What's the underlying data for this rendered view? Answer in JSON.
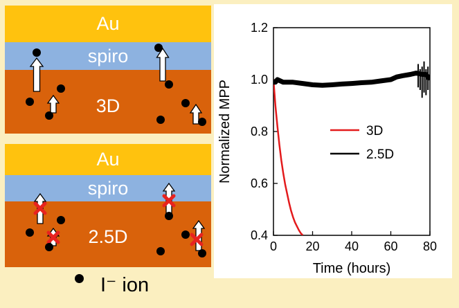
{
  "panels": [
    {
      "name": "3D",
      "layers": {
        "top": "Au",
        "middle": "spiro",
        "bottom": "3D"
      }
    },
    {
      "name": "2.5D",
      "layers": {
        "top": "Au",
        "middle": "spiro",
        "bottom": "2.5D"
      }
    }
  ],
  "legend": {
    "label": "I⁻ ion"
  },
  "colors": {
    "au": "#ffc20e",
    "spiro": "#8db2e0",
    "perovskite": "#d9620b",
    "ion": "#000000",
    "block_mark": "#e8231f"
  },
  "chart_data": {
    "type": "line",
    "xlabel": "Time (hours)",
    "ylabel": "Normalized MPP",
    "xlim": [
      0,
      80
    ],
    "ylim": [
      0.4,
      1.2
    ],
    "xticks": [
      0,
      20,
      40,
      60,
      80
    ],
    "yticks": [
      0.4,
      0.6,
      0.8,
      1.0,
      1.2
    ],
    "ytick_labels": [
      "0.4",
      "0.6",
      "0.8",
      "1.0",
      "1.2"
    ],
    "series": [
      {
        "name": "3D",
        "color": "#e31a1c",
        "x": [
          0,
          0.5,
          1,
          2,
          3,
          4,
          5,
          6,
          7,
          8,
          9,
          10,
          11,
          12,
          13,
          14,
          15
        ],
        "y": [
          1.0,
          0.95,
          0.9,
          0.82,
          0.75,
          0.69,
          0.64,
          0.595,
          0.56,
          0.525,
          0.495,
          0.47,
          0.45,
          0.435,
          0.42,
          0.408,
          0.4
        ]
      },
      {
        "name": "2.5D",
        "color": "#000000",
        "x": [
          0,
          1,
          2,
          5,
          10,
          15,
          20,
          25,
          30,
          35,
          40,
          45,
          50,
          55,
          60,
          63,
          66,
          70,
          73,
          76,
          78,
          80
        ],
        "y": [
          0.99,
          0.99,
          1.0,
          0.99,
          0.99,
          0.985,
          0.98,
          0.978,
          0.98,
          0.983,
          0.985,
          0.988,
          0.99,
          0.995,
          1.0,
          1.01,
          1.015,
          1.02,
          1.025,
          1.02,
          1.02,
          1.0
        ]
      }
    ],
    "legend_entries": [
      "3D",
      "2.5D"
    ],
    "legend_position": "center-right"
  }
}
